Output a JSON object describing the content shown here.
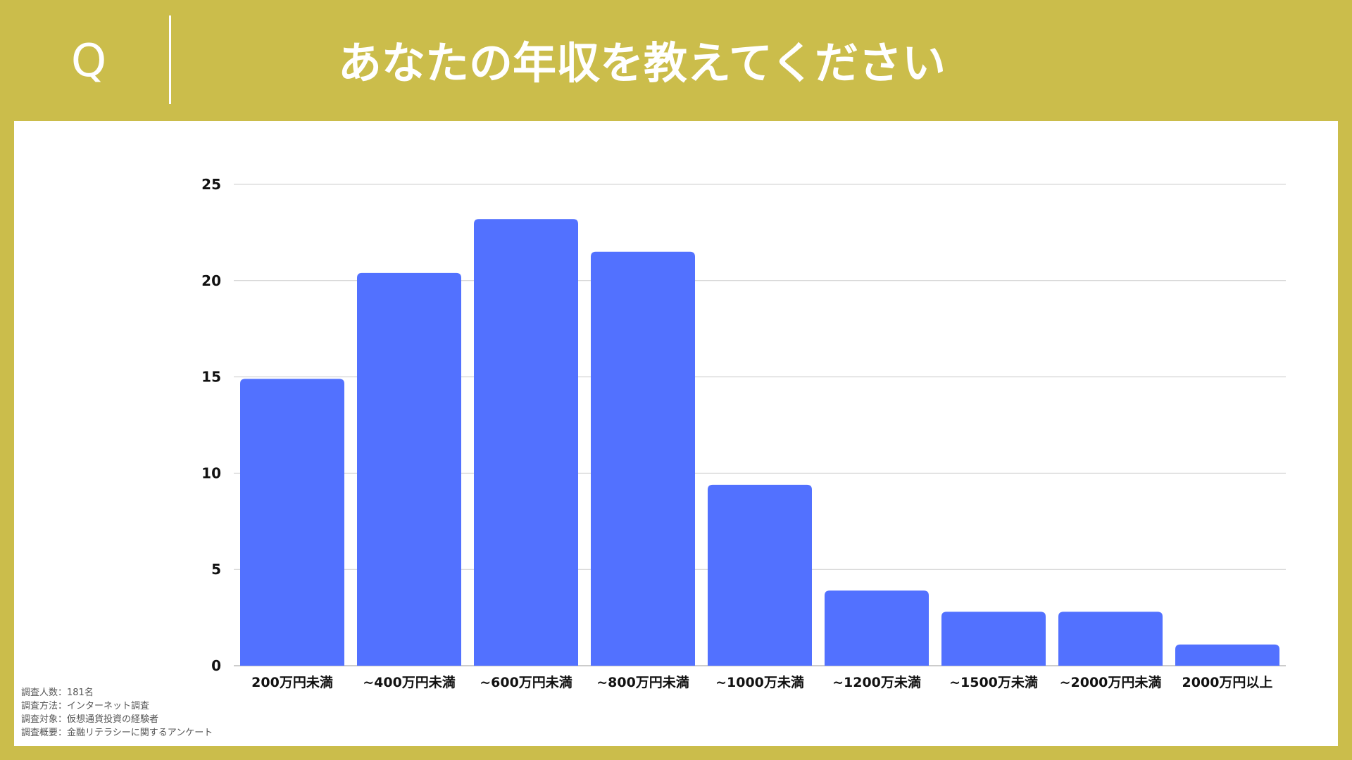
{
  "header": {
    "q_label": "Q",
    "question": "あなたの年収を教えてください"
  },
  "colors": {
    "background": "#cbbd4b",
    "panel": "#ffffff",
    "bar": "#5271ff",
    "grid": "#cccccc",
    "axis_text": "#111111"
  },
  "chart_data": {
    "type": "bar",
    "title": "",
    "xlabel": "",
    "ylabel": "",
    "categories": [
      "200万円未満",
      "~400万円未満",
      "~600万円未満",
      "~800万円未満",
      "~1000万未満",
      "~1200万未満",
      "~1500万未満",
      "~2000万円未満",
      "2000万円以上"
    ],
    "values": [
      14.9,
      20.4,
      23.2,
      21.5,
      9.4,
      3.9,
      2.8,
      2.8,
      1.1
    ],
    "ylim": [
      0,
      25
    ],
    "yticks": [
      0,
      5,
      10,
      15,
      20,
      25
    ],
    "grid": true,
    "legend": "none"
  },
  "notes": [
    "調査人数：181名",
    "調査方法：インターネット調査",
    "調査対象：仮想通貨投資の経験者",
    "調査概要：金融リテラシーに関するアンケート"
  ]
}
